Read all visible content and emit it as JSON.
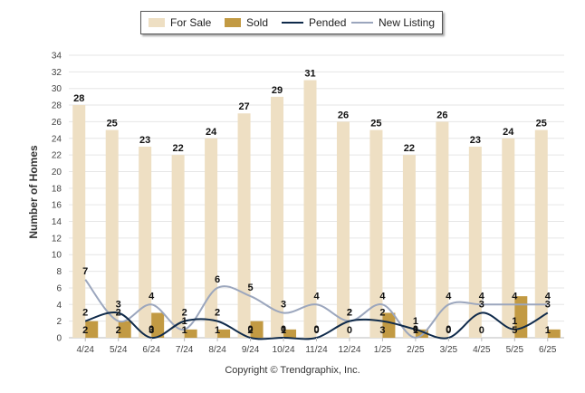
{
  "chart_data": {
    "type": "bar",
    "title": "",
    "xlabel": "",
    "ylabel": "Number of Homes",
    "ylim": [
      0,
      34
    ],
    "yticks": [
      0,
      2,
      4,
      6,
      8,
      10,
      12,
      14,
      16,
      18,
      20,
      22,
      24,
      26,
      28,
      30,
      32,
      34
    ],
    "grid": true,
    "legend_position": "top-center",
    "categories": [
      "4/24",
      "5/24",
      "6/24",
      "7/24",
      "8/24",
      "9/24",
      "10/24",
      "11/24",
      "12/24",
      "1/25",
      "2/25",
      "3/25",
      "4/25",
      "5/25",
      "6/25"
    ],
    "series": [
      {
        "name": "For Sale",
        "kind": "bar",
        "color": "#eedfc3",
        "values": [
          28,
          25,
          23,
          22,
          24,
          27,
          29,
          31,
          26,
          25,
          22,
          26,
          23,
          24,
          25
        ]
      },
      {
        "name": "Sold",
        "kind": "bar",
        "color": "#c29a43",
        "values": [
          2,
          2,
          3,
          1,
          1,
          2,
          1,
          0,
          0,
          3,
          1,
          0,
          0,
          5,
          1
        ]
      },
      {
        "name": "Pended",
        "kind": "line",
        "color": "#0f2a4a",
        "values": [
          2,
          3,
          0,
          2,
          2,
          0,
          0,
          0,
          2,
          2,
          1,
          0,
          3,
          1,
          3
        ]
      },
      {
        "name": "New Listing",
        "kind": "line",
        "color": "#9ba6bd",
        "values": [
          7,
          2,
          4,
          1,
          6,
          5,
          3,
          4,
          2,
          4,
          0,
          4,
          4,
          4,
          4
        ]
      }
    ]
  },
  "copyright": "Copyright © Trendgraphix, Inc."
}
